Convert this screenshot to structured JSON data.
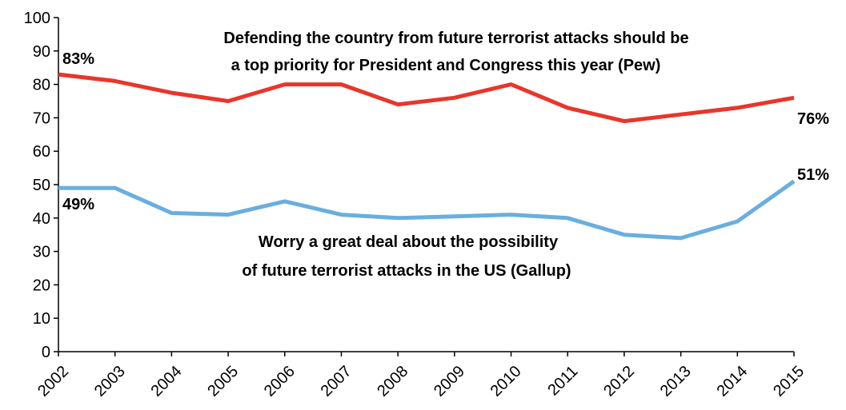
{
  "chart_data": {
    "type": "line",
    "categories": [
      "2002",
      "2003",
      "2004",
      "2005",
      "2006",
      "2007",
      "2008",
      "2009",
      "2010",
      "2011",
      "2012",
      "2013",
      "2014",
      "2015"
    ],
    "ylim": [
      0,
      100
    ],
    "yticks": [
      0,
      10,
      20,
      30,
      40,
      50,
      60,
      70,
      80,
      90,
      100
    ],
    "grid": false,
    "series": [
      {
        "name": "Defending the country from future terrorist attacks should be a top priority for President and Congress this year (Pew)",
        "color": "#e8362b",
        "values": [
          83,
          81,
          77.5,
          75,
          80,
          80,
          74,
          76,
          80,
          73,
          69,
          71,
          73,
          76
        ],
        "start_label": "83%",
        "end_label": "76%",
        "annotation_lines": [
          "Defending the country from future terrorist attacks should be",
          "a top priority for President and Congress this year (Pew)"
        ]
      },
      {
        "name": "Worry a great deal about the possibility of future terrorist attacks in the US (Gallup)",
        "color": "#6aaedf",
        "values": [
          49,
          49,
          41.5,
          41,
          45,
          41,
          40,
          40.5,
          41,
          40,
          35,
          34,
          39,
          51
        ],
        "start_label": "49%",
        "end_label": "51%",
        "annotation_lines": [
          "Worry a great deal about the possibility",
          "of future terrorist attacks in the US (Gallup)"
        ]
      }
    ]
  }
}
